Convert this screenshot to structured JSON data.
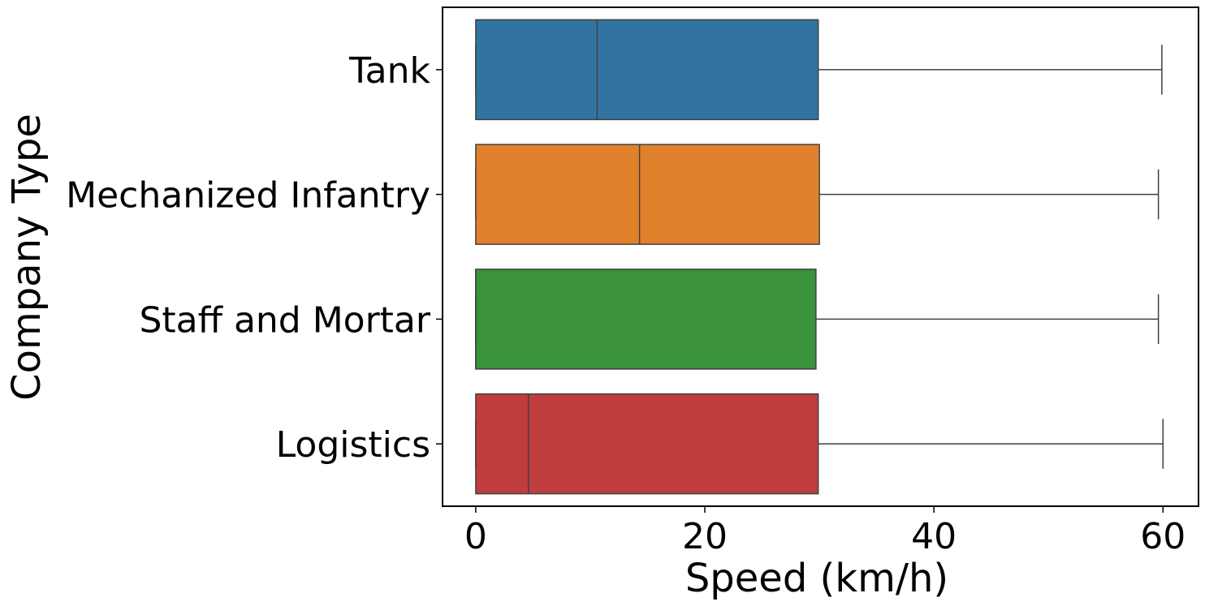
{
  "chart_data": {
    "type": "boxplot",
    "orientation": "horizontal",
    "xlabel": "Speed (km/h)",
    "ylabel": "Company Type",
    "xlim": [
      -2.9,
      63.1
    ],
    "xticks": [
      0,
      20,
      40,
      60
    ],
    "xtick_labels": [
      "0",
      "20",
      "40",
      "60"
    ],
    "grid": false,
    "categories": [
      "Tank",
      "Mechanized Infantry",
      "Staff and Mortar",
      "Logistics"
    ],
    "boxes": [
      {
        "category": "Tank",
        "whisker_low": 0,
        "q1": 0,
        "median": 10.6,
        "q3": 29.9,
        "whisker_high": 59.9,
        "color": "#3274a1"
      },
      {
        "category": "Mechanized Infantry",
        "whisker_low": 0,
        "q1": 0,
        "median": 14.3,
        "q3": 30.0,
        "whisker_high": 59.6,
        "color": "#e1812c"
      },
      {
        "category": "Staff and Mortar",
        "whisker_low": 0,
        "q1": 0,
        "median": 0,
        "q3": 29.7,
        "whisker_high": 59.6,
        "color": "#3a923a"
      },
      {
        "category": "Logistics",
        "whisker_low": 0,
        "q1": 0,
        "median": 4.6,
        "q3": 29.9,
        "whisker_high": 60.0,
        "color": "#c03d3e"
      }
    ]
  }
}
